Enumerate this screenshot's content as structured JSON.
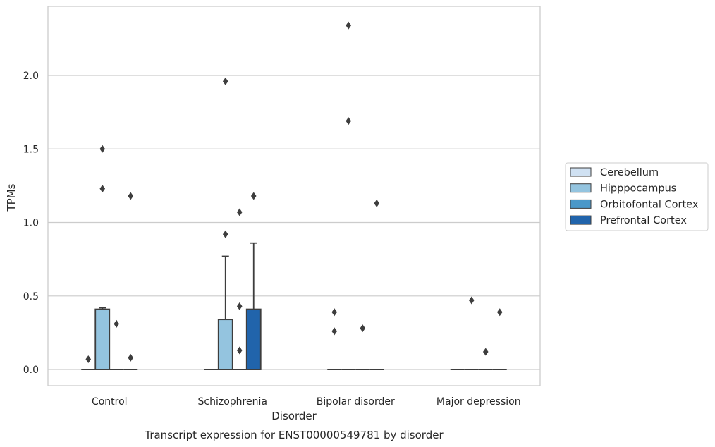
{
  "chart_data": {
    "type": "box",
    "title": "",
    "caption": "Transcript expression for ENST00000549781 by disorder",
    "xlabel": "Disorder",
    "ylabel": "TPMs",
    "ylim": [
      -0.11,
      2.47
    ],
    "yticks": [
      "0.0",
      "0.5",
      "1.0",
      "1.5",
      "2.0"
    ],
    "grid": "horizontal",
    "legend_position": "right",
    "categories": [
      "Control",
      "Schizophrenia",
      "Bipolar disorder",
      "Major depression"
    ],
    "series": [
      {
        "name": "Cerebellum",
        "color": "#d0e1f2",
        "boxes": [
          {
            "q1": 0,
            "median": 0,
            "q3": 0,
            "whisker_low": 0,
            "whisker_high": 0,
            "outliers": [
              0.07
            ]
          },
          {
            "q1": 0,
            "median": 0,
            "q3": 0,
            "whisker_low": 0,
            "whisker_high": 0,
            "outliers": []
          },
          {
            "q1": 0,
            "median": 0,
            "q3": 0,
            "whisker_low": 0,
            "whisker_high": 0,
            "outliers": [
              0.26,
              0.39
            ]
          },
          {
            "q1": 0,
            "median": 0,
            "q3": 0,
            "whisker_low": 0,
            "whisker_high": 0,
            "outliers": []
          }
        ]
      },
      {
        "name": "Hipppocampus",
        "color": "#94c4df",
        "boxes": [
          {
            "q1": 0,
            "median": 0,
            "q3": 0.41,
            "whisker_low": 0,
            "whisker_high": 0.42,
            "outliers": [
              1.23,
              1.5
            ]
          },
          {
            "q1": 0,
            "median": 0,
            "q3": 0.34,
            "whisker_low": 0,
            "whisker_high": 0.77,
            "outliers": [
              0.92,
              1.96
            ]
          },
          {
            "q1": 0,
            "median": 0,
            "q3": 0,
            "whisker_low": 0,
            "whisker_high": 0,
            "outliers": [
              1.69,
              2.34
            ]
          },
          {
            "q1": 0,
            "median": 0,
            "q3": 0,
            "whisker_low": 0,
            "whisker_high": 0,
            "outliers": [
              0.47
            ]
          }
        ]
      },
      {
        "name": "Orbitofontal Cortex",
        "color": "#4a98c9",
        "boxes": [
          {
            "q1": 0,
            "median": 0,
            "q3": 0,
            "whisker_low": 0,
            "whisker_high": 0,
            "outliers": [
              0.31
            ]
          },
          {
            "q1": 0,
            "median": 0,
            "q3": 0,
            "whisker_low": 0,
            "whisker_high": 0,
            "outliers": [
              0.13,
              0.43,
              1.07
            ]
          },
          {
            "q1": 0,
            "median": 0,
            "q3": 0,
            "whisker_low": 0,
            "whisker_high": 0,
            "outliers": [
              0.28
            ]
          },
          {
            "q1": 0,
            "median": 0,
            "q3": 0,
            "whisker_low": 0,
            "whisker_high": 0,
            "outliers": [
              0.12
            ]
          }
        ]
      },
      {
        "name": "Prefrontal Cortex",
        "color": "#2164ab",
        "boxes": [
          {
            "q1": 0,
            "median": 0,
            "q3": 0,
            "whisker_low": 0,
            "whisker_high": 0,
            "outliers": [
              0.08,
              1.18
            ]
          },
          {
            "q1": 0,
            "median": 0,
            "q3": 0.41,
            "whisker_low": 0,
            "whisker_high": 0.86,
            "outliers": [
              1.18
            ]
          },
          {
            "q1": 0,
            "median": 0,
            "q3": 0,
            "whisker_low": 0,
            "whisker_high": 0,
            "outliers": [
              1.13
            ]
          },
          {
            "q1": 0,
            "median": 0,
            "q3": 0,
            "whisker_low": 0,
            "whisker_high": 0,
            "outliers": [
              0.39
            ]
          }
        ]
      }
    ]
  }
}
